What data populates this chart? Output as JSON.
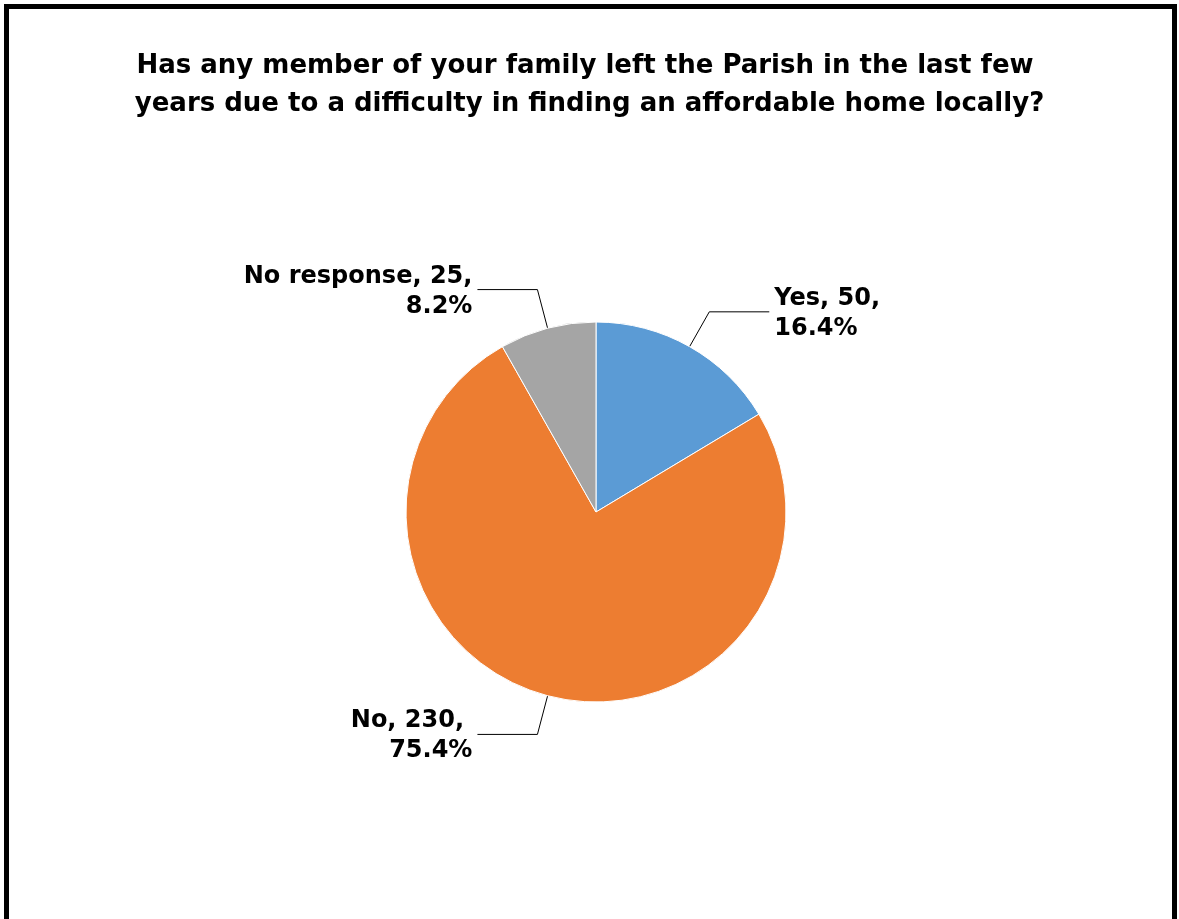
{
  "chart_data": {
    "type": "pie",
    "title": "Has any member of your family left the Parish in the last few years due to a difficulty in finding an affordable home locally?",
    "categories": [
      "Yes",
      "No",
      "No response"
    ],
    "values": [
      50,
      230,
      25
    ],
    "colors": [
      "#5b9bd5",
      "#ed7d31",
      "#a5a5a5"
    ],
    "value_labels": [
      "50, 16.4%",
      "230, 75.4%",
      "25, 8.2%"
    ],
    "legend": false
  }
}
